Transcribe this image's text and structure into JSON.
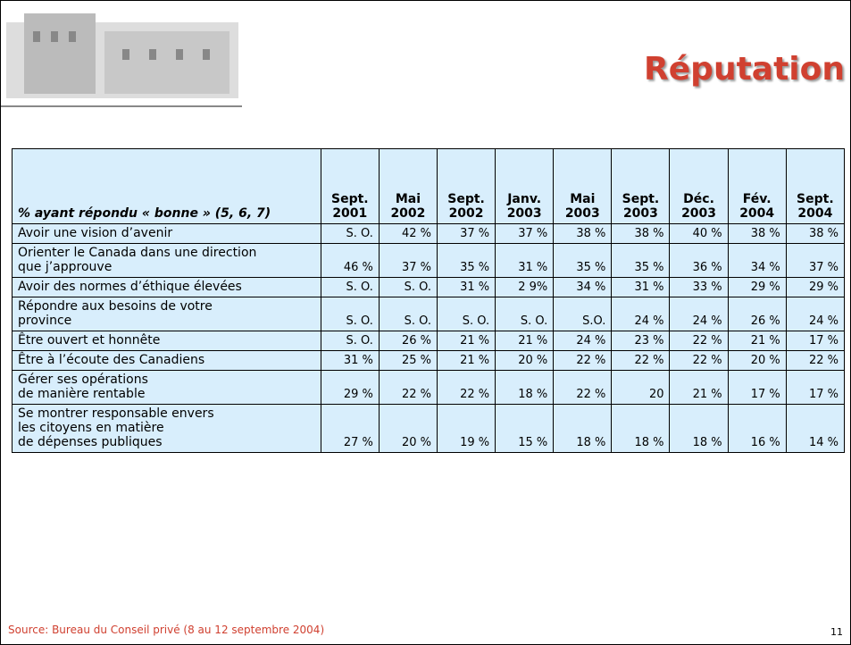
{
  "header": {
    "title": "Réputation"
  },
  "table": {
    "columns": [
      "% ayant répondu « bonne » (5, 6, 7)",
      "Sept.\n2001",
      "Mai\n2002",
      "Sept.\n2002",
      "Janv.\n2003",
      "Mai\n2003",
      "Sept.\n2003",
      "Déc.\n2003",
      "Fév.\n2004",
      "Sept.\n2004"
    ],
    "rows": [
      [
        "Avoir une vision d’avenir",
        "S. O.",
        "42 %",
        "37 %",
        "37 %",
        "38 %",
        "38 %",
        "40 %",
        "38 %",
        "38 %"
      ],
      [
        "Orienter le Canada dans une direction\nque j’approuve",
        "46 %",
        "37 %",
        "35 %",
        "31 %",
        "35 %",
        "35 %",
        "36 %",
        "34 %",
        "37 %"
      ],
      [
        "Avoir des normes d’éthique élevées",
        "S. O.",
        "S. O.",
        "31 %",
        "2 9%",
        "34 %",
        "31 %",
        "33 %",
        "29 %",
        "29 %"
      ],
      [
        "Répondre aux besoins de votre\nprovince",
        "S. O.",
        "S. O.",
        "S. O.",
        "S. O.",
        "S.O.",
        "24 %",
        "24 %",
        "26 %",
        "24 %"
      ],
      [
        "Être ouvert et honnête",
        "S. O.",
        "26 %",
        "21 %",
        "21 %",
        "24 %",
        "23 %",
        "22 %",
        "21 %",
        "17 %"
      ],
      [
        "Être à l’écoute des Canadiens",
        "31 %",
        "25 %",
        "21 %",
        "20 %",
        "22 %",
        "22 %",
        "22 %",
        "20 %",
        "22 %"
      ],
      [
        "Gérer ses opérations\nde manière rentable",
        "29 %",
        "22 %",
        "22 %",
        "18 %",
        "22 %",
        "20",
        "21 %",
        "17 %",
        "17 %"
      ],
      [
        "Se montrer responsable envers\nles citoyens en matière\nde dépenses publiques",
        "27 %",
        "20 %",
        "19 %",
        "15 %",
        "18 %",
        "18 %",
        "18 %",
        "16 %",
        "14 %"
      ]
    ]
  },
  "footer": {
    "source": "Source: Bureau du Conseil privé (8 au 12 septembre 2004)",
    "page": "11"
  }
}
